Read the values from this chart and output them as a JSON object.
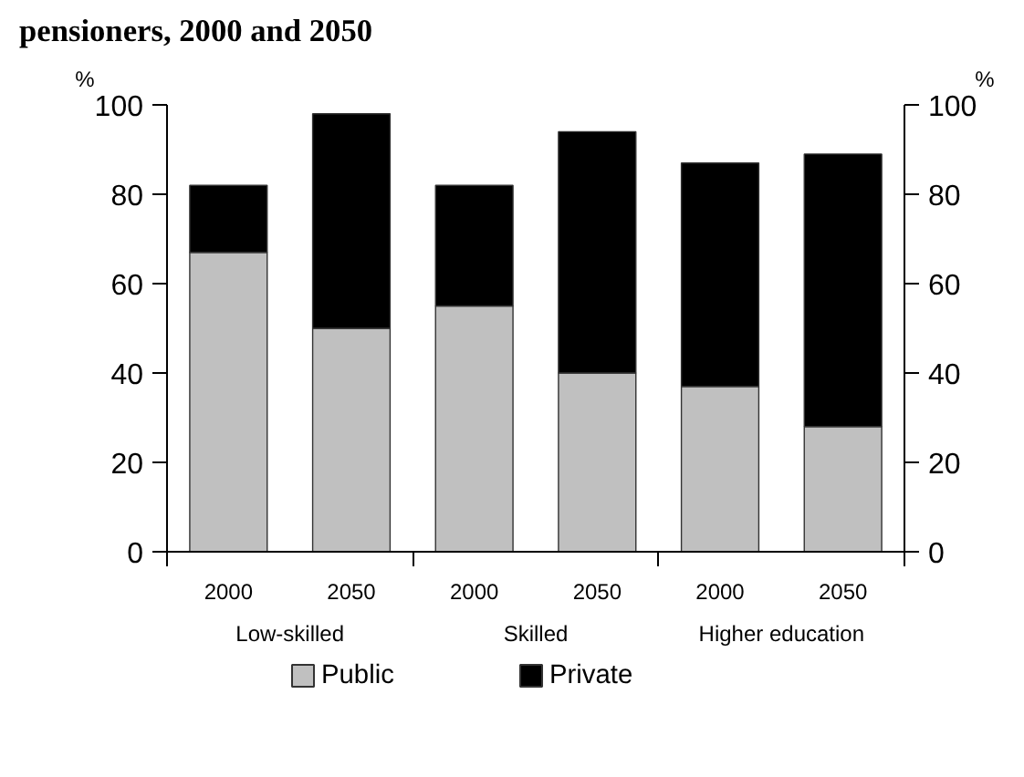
{
  "chart_data": {
    "type": "bar",
    "title": "pensioners, 2000 and 2050",
    "ylabel": "%",
    "y2label": "%",
    "categories": [
      "2000",
      "2050",
      "2000",
      "2050",
      "2000",
      "2050"
    ],
    "annotations": [
      "Low-skilled",
      "Skilled",
      "Higher education"
    ],
    "stacked": true,
    "series": [
      {
        "name": "Public",
        "color": "#c0c0c0",
        "values": [
          67,
          50,
          55,
          40,
          37,
          28
        ]
      },
      {
        "name": "Private",
        "color": "#000000",
        "values": [
          15,
          48,
          27,
          54,
          50,
          61
        ]
      }
    ],
    "ylim": [
      0,
      100
    ],
    "yticks": [
      0,
      20,
      40,
      60,
      80,
      100
    ],
    "y2lim": [
      0,
      100
    ],
    "y2ticks": [
      0,
      20,
      40,
      60,
      80,
      100
    ],
    "grid": false,
    "legend": "bottom"
  }
}
